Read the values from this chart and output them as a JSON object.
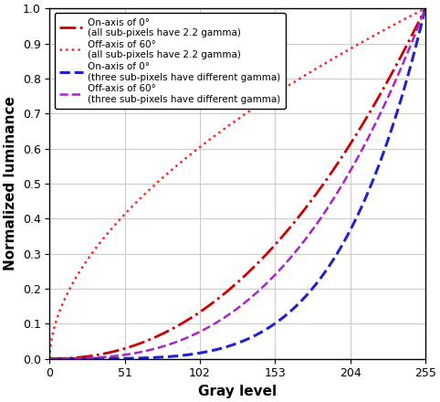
{
  "xlabel": "Gray level",
  "ylabel": "Normalized luminance",
  "xlim": [
    0,
    255
  ],
  "ylim": [
    0,
    1
  ],
  "xticks": [
    0,
    51,
    102,
    153,
    204,
    255
  ],
  "yticks": [
    0,
    0.1,
    0.2,
    0.3,
    0.4,
    0.5,
    0.6,
    0.7,
    0.8,
    0.9,
    1.0
  ],
  "curves": [
    {
      "label": "On-axis of 0°\n(all sub-pixels have 2.2 gamma)",
      "color": "#cc0000",
      "linestyle": "dashdot",
      "linewidth": 2.0,
      "gamma": 2.2
    },
    {
      "label": "Off-axis of 60°\n(all sub-pixels have 2.2 gamma)",
      "color": "#ff2222",
      "linestyle": "dotted",
      "linewidth": 1.8,
      "gamma": 0.55
    },
    {
      "label": "On-axis of 0°\n(three sub-pixels have different gamma)",
      "color": "#2222cc",
      "linestyle": "dashed",
      "linewidth": 2.2,
      "gamma": 4.5
    },
    {
      "label": "Off-axis of 60°\n(three sub-pixels have different gamma)",
      "color": "#aa22cc",
      "linestyle": "dashed",
      "linewidth": 1.8,
      "gamma": 2.8
    }
  ],
  "background_color": "#ffffff",
  "grid_color": "#cccccc",
  "xlabel_fontsize": 11,
  "ylabel_fontsize": 11,
  "legend_fontsize": 7.5
}
